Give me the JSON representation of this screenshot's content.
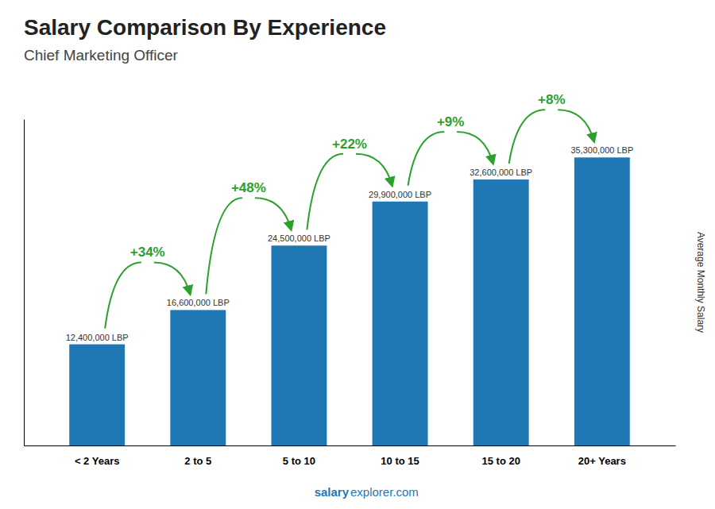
{
  "chart_data": {
    "type": "bar",
    "title": "Salary Comparison By Experience",
    "subtitle": "Chief Marketing Officer",
    "ylabel": "Average Monthly Salary",
    "footer": [
      "salary",
      "explorer.com"
    ],
    "categories": [
      "< 2 Years",
      "2 to 5",
      "5 to 10",
      "10 to 15",
      "15 to 20",
      "20+ Years"
    ],
    "values": [
      12400000,
      16600000,
      24500000,
      29900000,
      32600000,
      35300000
    ],
    "value_labels": [
      "12,400,000 LBP",
      "16,600,000 LBP",
      "24,500,000 LBP",
      "29,900,000 LBP",
      "32,600,000 LBP",
      "35,300,000 LBP"
    ],
    "annotations": [
      {
        "text": "+34%",
        "from": "< 2 Years",
        "to": "2 to 5"
      },
      {
        "text": "+48%",
        "from": "2 to 5",
        "to": "5 to 10"
      },
      {
        "text": "+22%",
        "from": "5 to 10",
        "to": "10 to 15"
      },
      {
        "text": "+9%",
        "from": "10 to 15",
        "to": "15 to 20"
      },
      {
        "text": "+8%",
        "from": "15 to 20",
        "to": "20+ Years"
      }
    ],
    "ylim": [
      0,
      40000000
    ],
    "tick_labels": "x",
    "grid": false
  }
}
